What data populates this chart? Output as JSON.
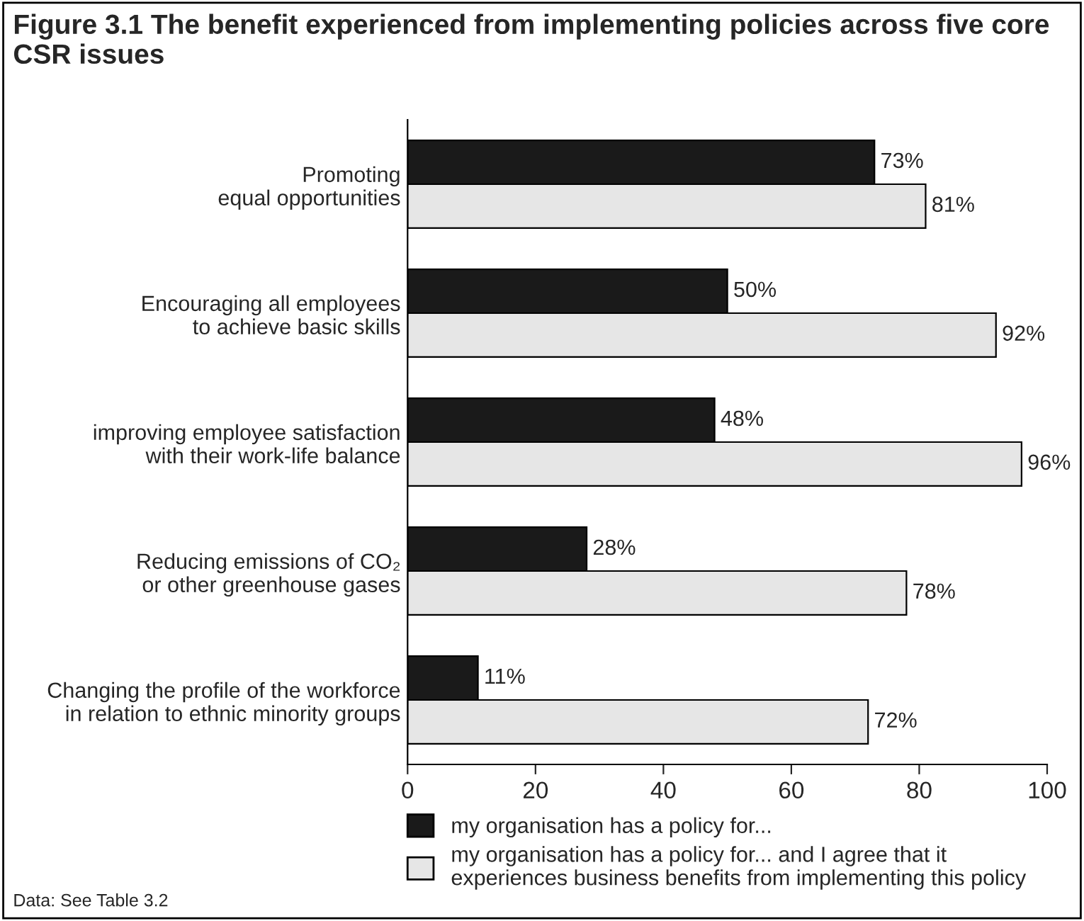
{
  "chart_data": {
    "type": "bar",
    "orientation": "horizontal",
    "title": "Figure 3.1 The benefit experienced from implementing policies across five core CSR issues",
    "categories": [
      "Promoting\nequal opportunities",
      "Encouraging all employees\nto achieve basic skills",
      "improving employee satisfaction\nwith their work-life balance",
      "Reducing emissions of CO₂\nor other greenhouse gases",
      "Changing the profile of the workforce\nin relation to ethnic minority groups"
    ],
    "series": [
      {
        "name": "my organisation has a policy for...",
        "color": "#1a1a1a",
        "values": [
          73,
          50,
          48,
          28,
          11
        ],
        "value_labels": [
          "73%",
          "50%",
          "48%",
          "28%",
          "11%"
        ]
      },
      {
        "name": "my organisation has a policy for... and I agree that it\nexperiences business benefits from implementing this policy",
        "color": "#e6e6e6",
        "values": [
          81,
          92,
          96,
          78,
          72
        ],
        "value_labels": [
          "81%",
          "92%",
          "96%",
          "78%",
          "72%"
        ]
      }
    ],
    "xlim": [
      0,
      100
    ],
    "xticks": [
      0,
      20,
      40,
      60,
      80,
      100
    ],
    "grid": false,
    "legend": "bottom",
    "annotations": [
      "Data: See Table 3.2"
    ]
  }
}
